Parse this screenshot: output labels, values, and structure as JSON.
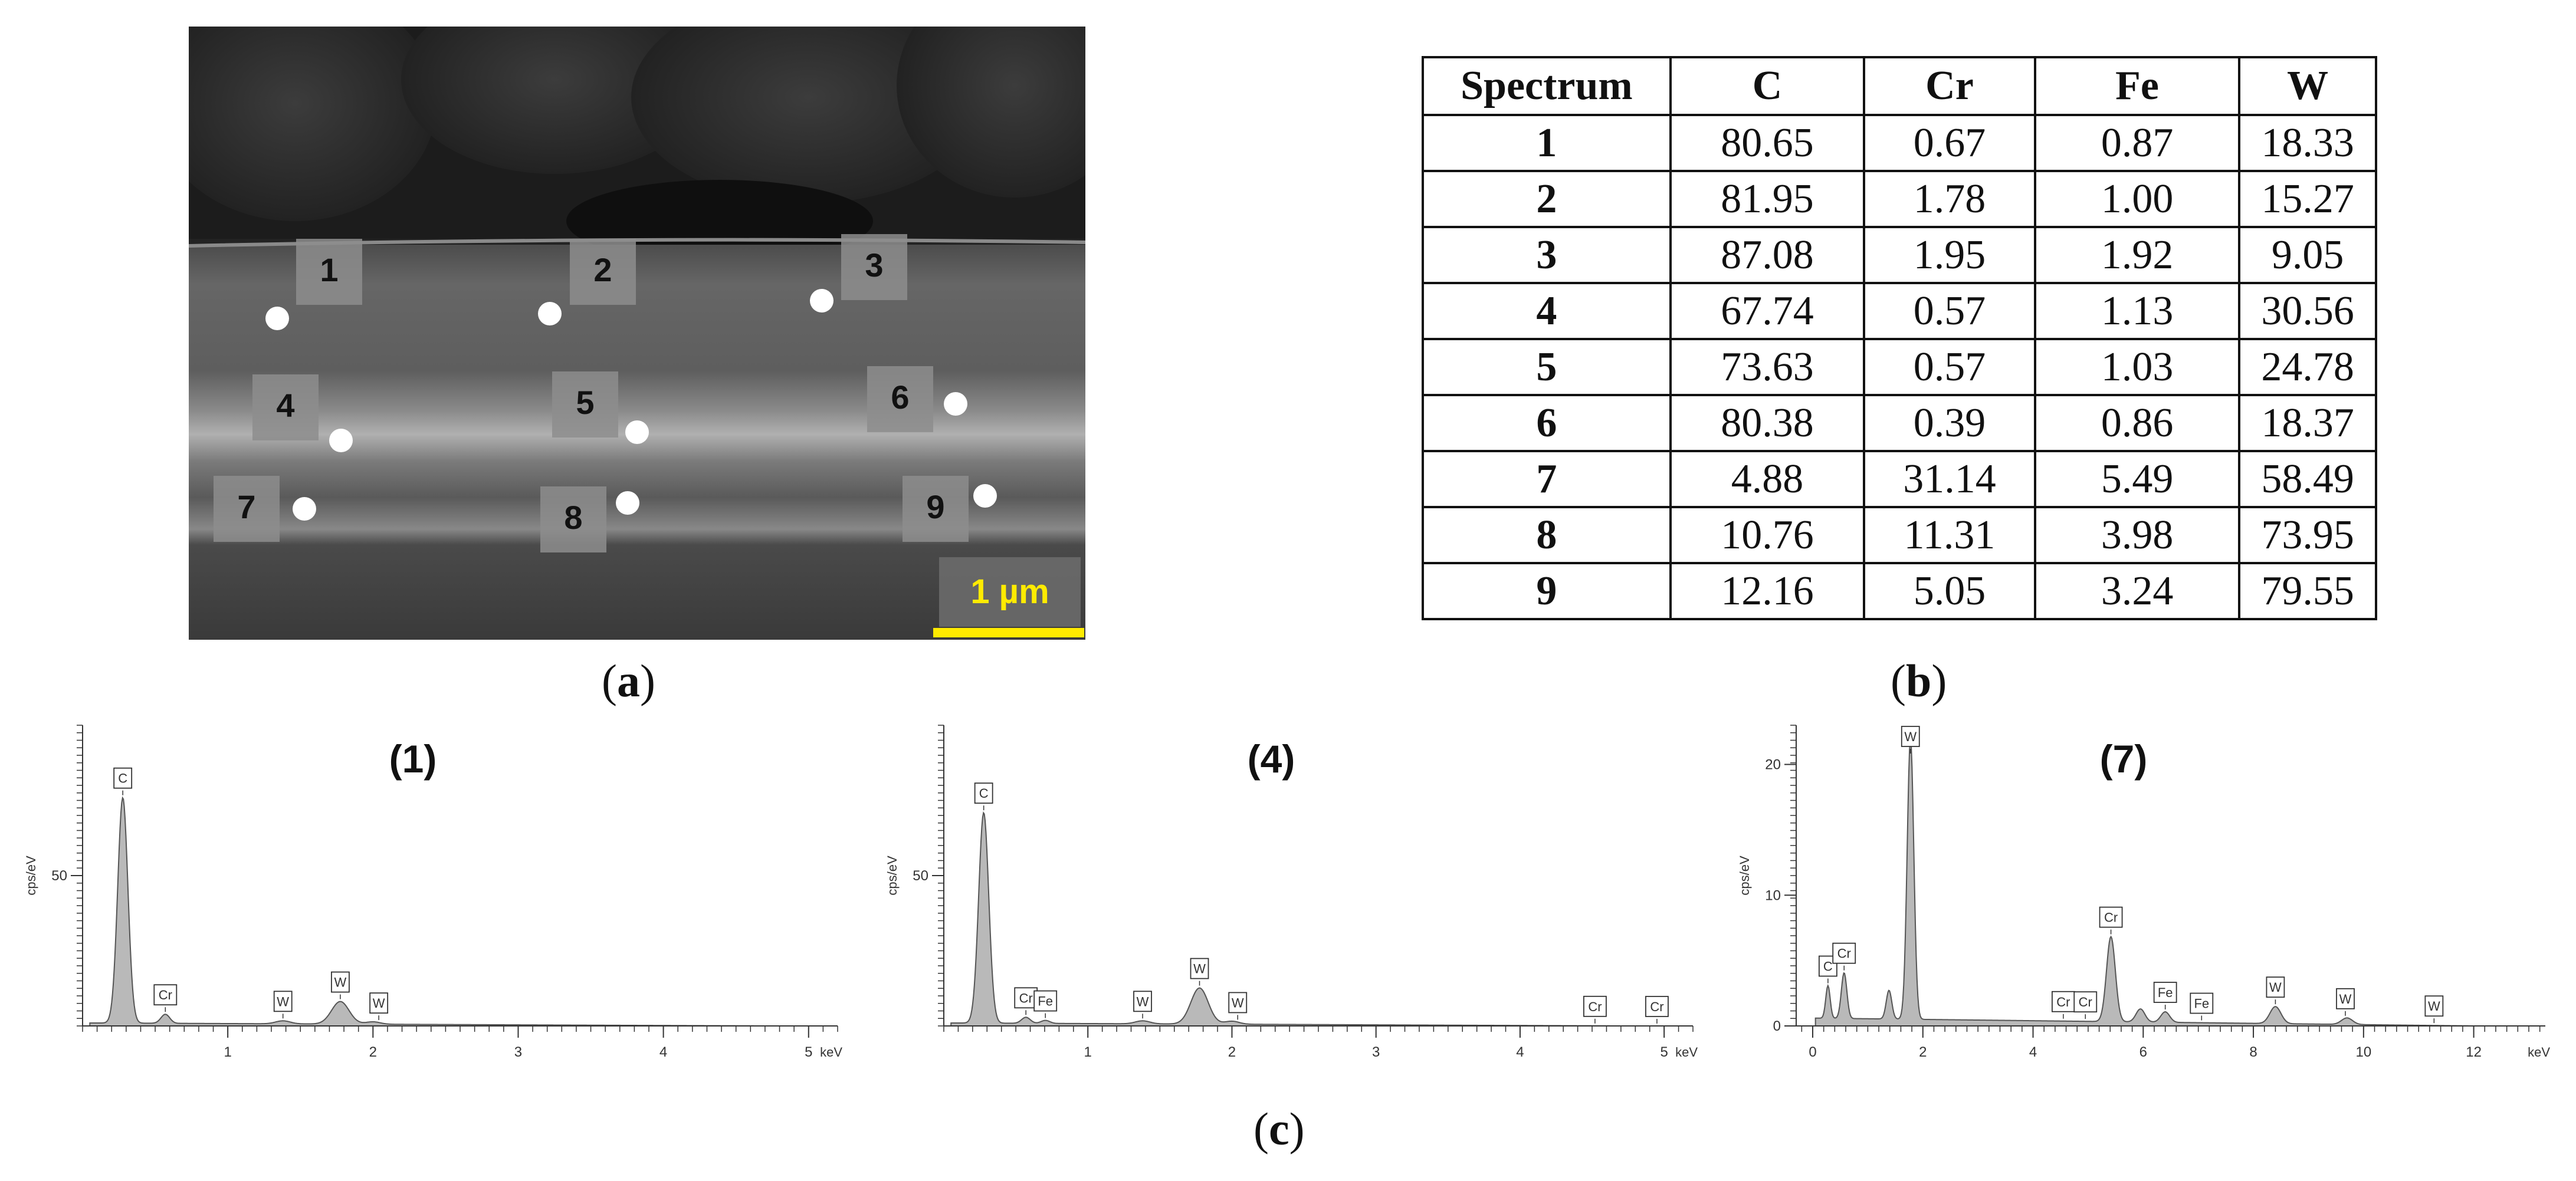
{
  "panel_a": {
    "caption_letter": "a",
    "scale_bar_label": "1 µm",
    "markers": [
      {
        "label": "1"
      },
      {
        "label": "2"
      },
      {
        "label": "3"
      },
      {
        "label": "4"
      },
      {
        "label": "5"
      },
      {
        "label": "6"
      },
      {
        "label": "7"
      },
      {
        "label": "8"
      },
      {
        "label": "9"
      }
    ]
  },
  "panel_b": {
    "caption_letter": "b",
    "headers": [
      "Spectrum",
      "C",
      "Cr",
      "Fe",
      "W"
    ],
    "rows": [
      [
        "1",
        "80.65",
        "0.67",
        "0.87",
        "18.33"
      ],
      [
        "2",
        "81.95",
        "1.78",
        "1.00",
        "15.27"
      ],
      [
        "3",
        "87.08",
        "1.95",
        "1.92",
        "9.05"
      ],
      [
        "4",
        "67.74",
        "0.57",
        "1.13",
        "30.56"
      ],
      [
        "5",
        "73.63",
        "0.57",
        "1.03",
        "24.78"
      ],
      [
        "6",
        "80.38",
        "0.39",
        "0.86",
        "18.37"
      ],
      [
        "7",
        "4.88",
        "31.14",
        "5.49",
        "58.49"
      ],
      [
        "8",
        "10.76",
        "11.31",
        "3.98",
        "73.95"
      ],
      [
        "9",
        "12.16",
        "5.05",
        "3.24",
        "79.55"
      ]
    ]
  },
  "panel_c": {
    "caption_letter": "c",
    "spectra": [
      {
        "title": "(1)",
        "ylabel": "cps/eV",
        "xunit": "keV",
        "xlim": [
          0,
          5.2
        ],
        "ylim": [
          0,
          100
        ],
        "yticks": [
          {
            "v": 50,
            "label": "50"
          }
        ],
        "xticks": [
          {
            "v": 1,
            "label": "1"
          },
          {
            "v": 2,
            "label": "2"
          },
          {
            "v": 3,
            "label": "3"
          },
          {
            "v": 4,
            "label": "4"
          },
          {
            "v": 5,
            "label": "5"
          }
        ],
        "peaks": [
          {
            "x": 0.277,
            "h": 75,
            "w": 0.035
          },
          {
            "x": 0.57,
            "h": 3,
            "w": 0.03
          },
          {
            "x": 1.38,
            "h": 1,
            "w": 0.05
          },
          {
            "x": 1.775,
            "h": 7.5,
            "w": 0.06
          },
          {
            "x": 2.0,
            "h": 0.8,
            "w": 0.05
          }
        ],
        "labels": [
          {
            "text": "C",
            "x": 0.277
          },
          {
            "text": "Cr",
            "x": 0.57
          },
          {
            "text": "W",
            "x": 1.38
          },
          {
            "text": "W",
            "x": 1.775
          },
          {
            "text": "W",
            "x": 2.04
          }
        ]
      },
      {
        "title": "(4)",
        "ylabel": "cps/eV",
        "xunit": "keV",
        "xlim": [
          0,
          5.2
        ],
        "ylim": [
          0,
          100
        ],
        "yticks": [
          {
            "v": 50,
            "label": "50"
          }
        ],
        "xticks": [
          {
            "v": 1,
            "label": "1"
          },
          {
            "v": 2,
            "label": "2"
          },
          {
            "v": 3,
            "label": "3"
          },
          {
            "v": 4,
            "label": "4"
          },
          {
            "v": 5,
            "label": "5"
          }
        ],
        "peaks": [
          {
            "x": 0.277,
            "h": 70,
            "w": 0.035
          },
          {
            "x": 0.57,
            "h": 2,
            "w": 0.03
          },
          {
            "x": 0.705,
            "h": 1,
            "w": 0.03
          },
          {
            "x": 1.38,
            "h": 1,
            "w": 0.05
          },
          {
            "x": 1.775,
            "h": 12,
            "w": 0.06
          },
          {
            "x": 2.0,
            "h": 1,
            "w": 0.05
          }
        ],
        "labels": [
          {
            "text": "C",
            "x": 0.277
          },
          {
            "text": "Cr",
            "x": 0.57
          },
          {
            "text": "Fe",
            "x": 0.705
          },
          {
            "text": "W",
            "x": 1.38
          },
          {
            "text": "W",
            "x": 1.775
          },
          {
            "text": "W",
            "x": 2.04
          },
          {
            "text": "Cr",
            "x": 4.52
          },
          {
            "text": "Cr",
            "x": 4.95
          }
        ]
      },
      {
        "title": "(7)",
        "ylabel": "cps/eV",
        "xunit": "keV",
        "xlim": [
          -0.3,
          13.3
        ],
        "ylim": [
          0,
          23
        ],
        "yticks": [
          {
            "v": 0,
            "label": "0"
          },
          {
            "v": 10,
            "label": "10"
          },
          {
            "v": 20,
            "label": "20"
          }
        ],
        "xticks": [
          {
            "v": 0,
            "label": "0"
          },
          {
            "v": 2,
            "label": "2"
          },
          {
            "v": 4,
            "label": "4"
          },
          {
            "v": 6,
            "label": "6"
          },
          {
            "v": 8,
            "label": "8"
          },
          {
            "v": 10,
            "label": "10"
          },
          {
            "v": 12,
            "label": "12"
          }
        ],
        "peaks": [
          {
            "x": 0.277,
            "h": 2.5,
            "w": 0.04
          },
          {
            "x": 0.57,
            "h": 3.5,
            "w": 0.05
          },
          {
            "x": 1.385,
            "h": 2.2,
            "w": 0.05
          },
          {
            "x": 1.775,
            "h": 21.5,
            "w": 0.06
          },
          {
            "x": 5.414,
            "h": 6.5,
            "w": 0.08
          },
          {
            "x": 5.95,
            "h": 1,
            "w": 0.08
          },
          {
            "x": 6.4,
            "h": 0.8,
            "w": 0.08
          },
          {
            "x": 8.4,
            "h": 1.3,
            "w": 0.1
          },
          {
            "x": 9.7,
            "h": 0.5,
            "w": 0.1
          }
        ],
        "labels": [
          {
            "text": "C",
            "x": 0.277
          },
          {
            "text": "Cr",
            "x": 0.57
          },
          {
            "text": "W",
            "x": 1.775
          },
          {
            "text": "Cr",
            "x": 4.55
          },
          {
            "text": "Cr",
            "x": 4.95
          },
          {
            "text": "Cr",
            "x": 5.414
          },
          {
            "text": "Fe",
            "x": 6.4
          },
          {
            "text": "Fe",
            "x": 7.06
          },
          {
            "text": "W",
            "x": 8.4
          },
          {
            "text": "W",
            "x": 9.67
          },
          {
            "text": "W",
            "x": 11.28
          }
        ]
      }
    ]
  }
}
